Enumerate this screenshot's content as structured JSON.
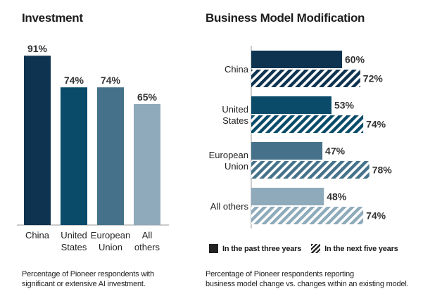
{
  "left_panel": {
    "title": "Investment",
    "caption_lines": [
      "Percentage of Pioneer respondents with",
      "significant or extensive AI investment."
    ]
  },
  "right_panel": {
    "title": "Business Model Modification",
    "caption_lines": [
      "Percentage of Pioneer respondents reporting",
      "business model change vs. changes within an existing model."
    ],
    "legend": {
      "past": "In the past three years",
      "next": "In the next five years"
    }
  },
  "colors": {
    "china": "#0e3350",
    "us": "#0a4b6a",
    "eu": "#45728a",
    "others": "#8eaabb"
  },
  "chart_data": [
    {
      "type": "bar",
      "title": "Investment",
      "categories": [
        [
          "China"
        ],
        [
          "United",
          "States"
        ],
        [
          "European",
          "Union"
        ],
        [
          "All",
          "others"
        ]
      ],
      "values": [
        91,
        74,
        74,
        65
      ],
      "value_labels": [
        "91%",
        "74%",
        "74%",
        "65%"
      ],
      "ylim": [
        0,
        100
      ]
    },
    {
      "type": "bar",
      "orientation": "horizontal",
      "title": "Business Model Modification",
      "categories": [
        [
          "China"
        ],
        [
          "United",
          "States"
        ],
        [
          "European",
          "Union"
        ],
        [
          "All others"
        ]
      ],
      "series": [
        {
          "name": "In the past three years",
          "style": "solid",
          "values": [
            60,
            53,
            47,
            48
          ],
          "labels": [
            "60%",
            "53%",
            "47%",
            "48%"
          ]
        },
        {
          "name": "In the next five years",
          "style": "hatched",
          "values": [
            72,
            74,
            78,
            74
          ],
          "labels": [
            "72%",
            "74%",
            "78%",
            "74%"
          ]
        }
      ],
      "xlim": [
        0,
        100
      ]
    }
  ]
}
